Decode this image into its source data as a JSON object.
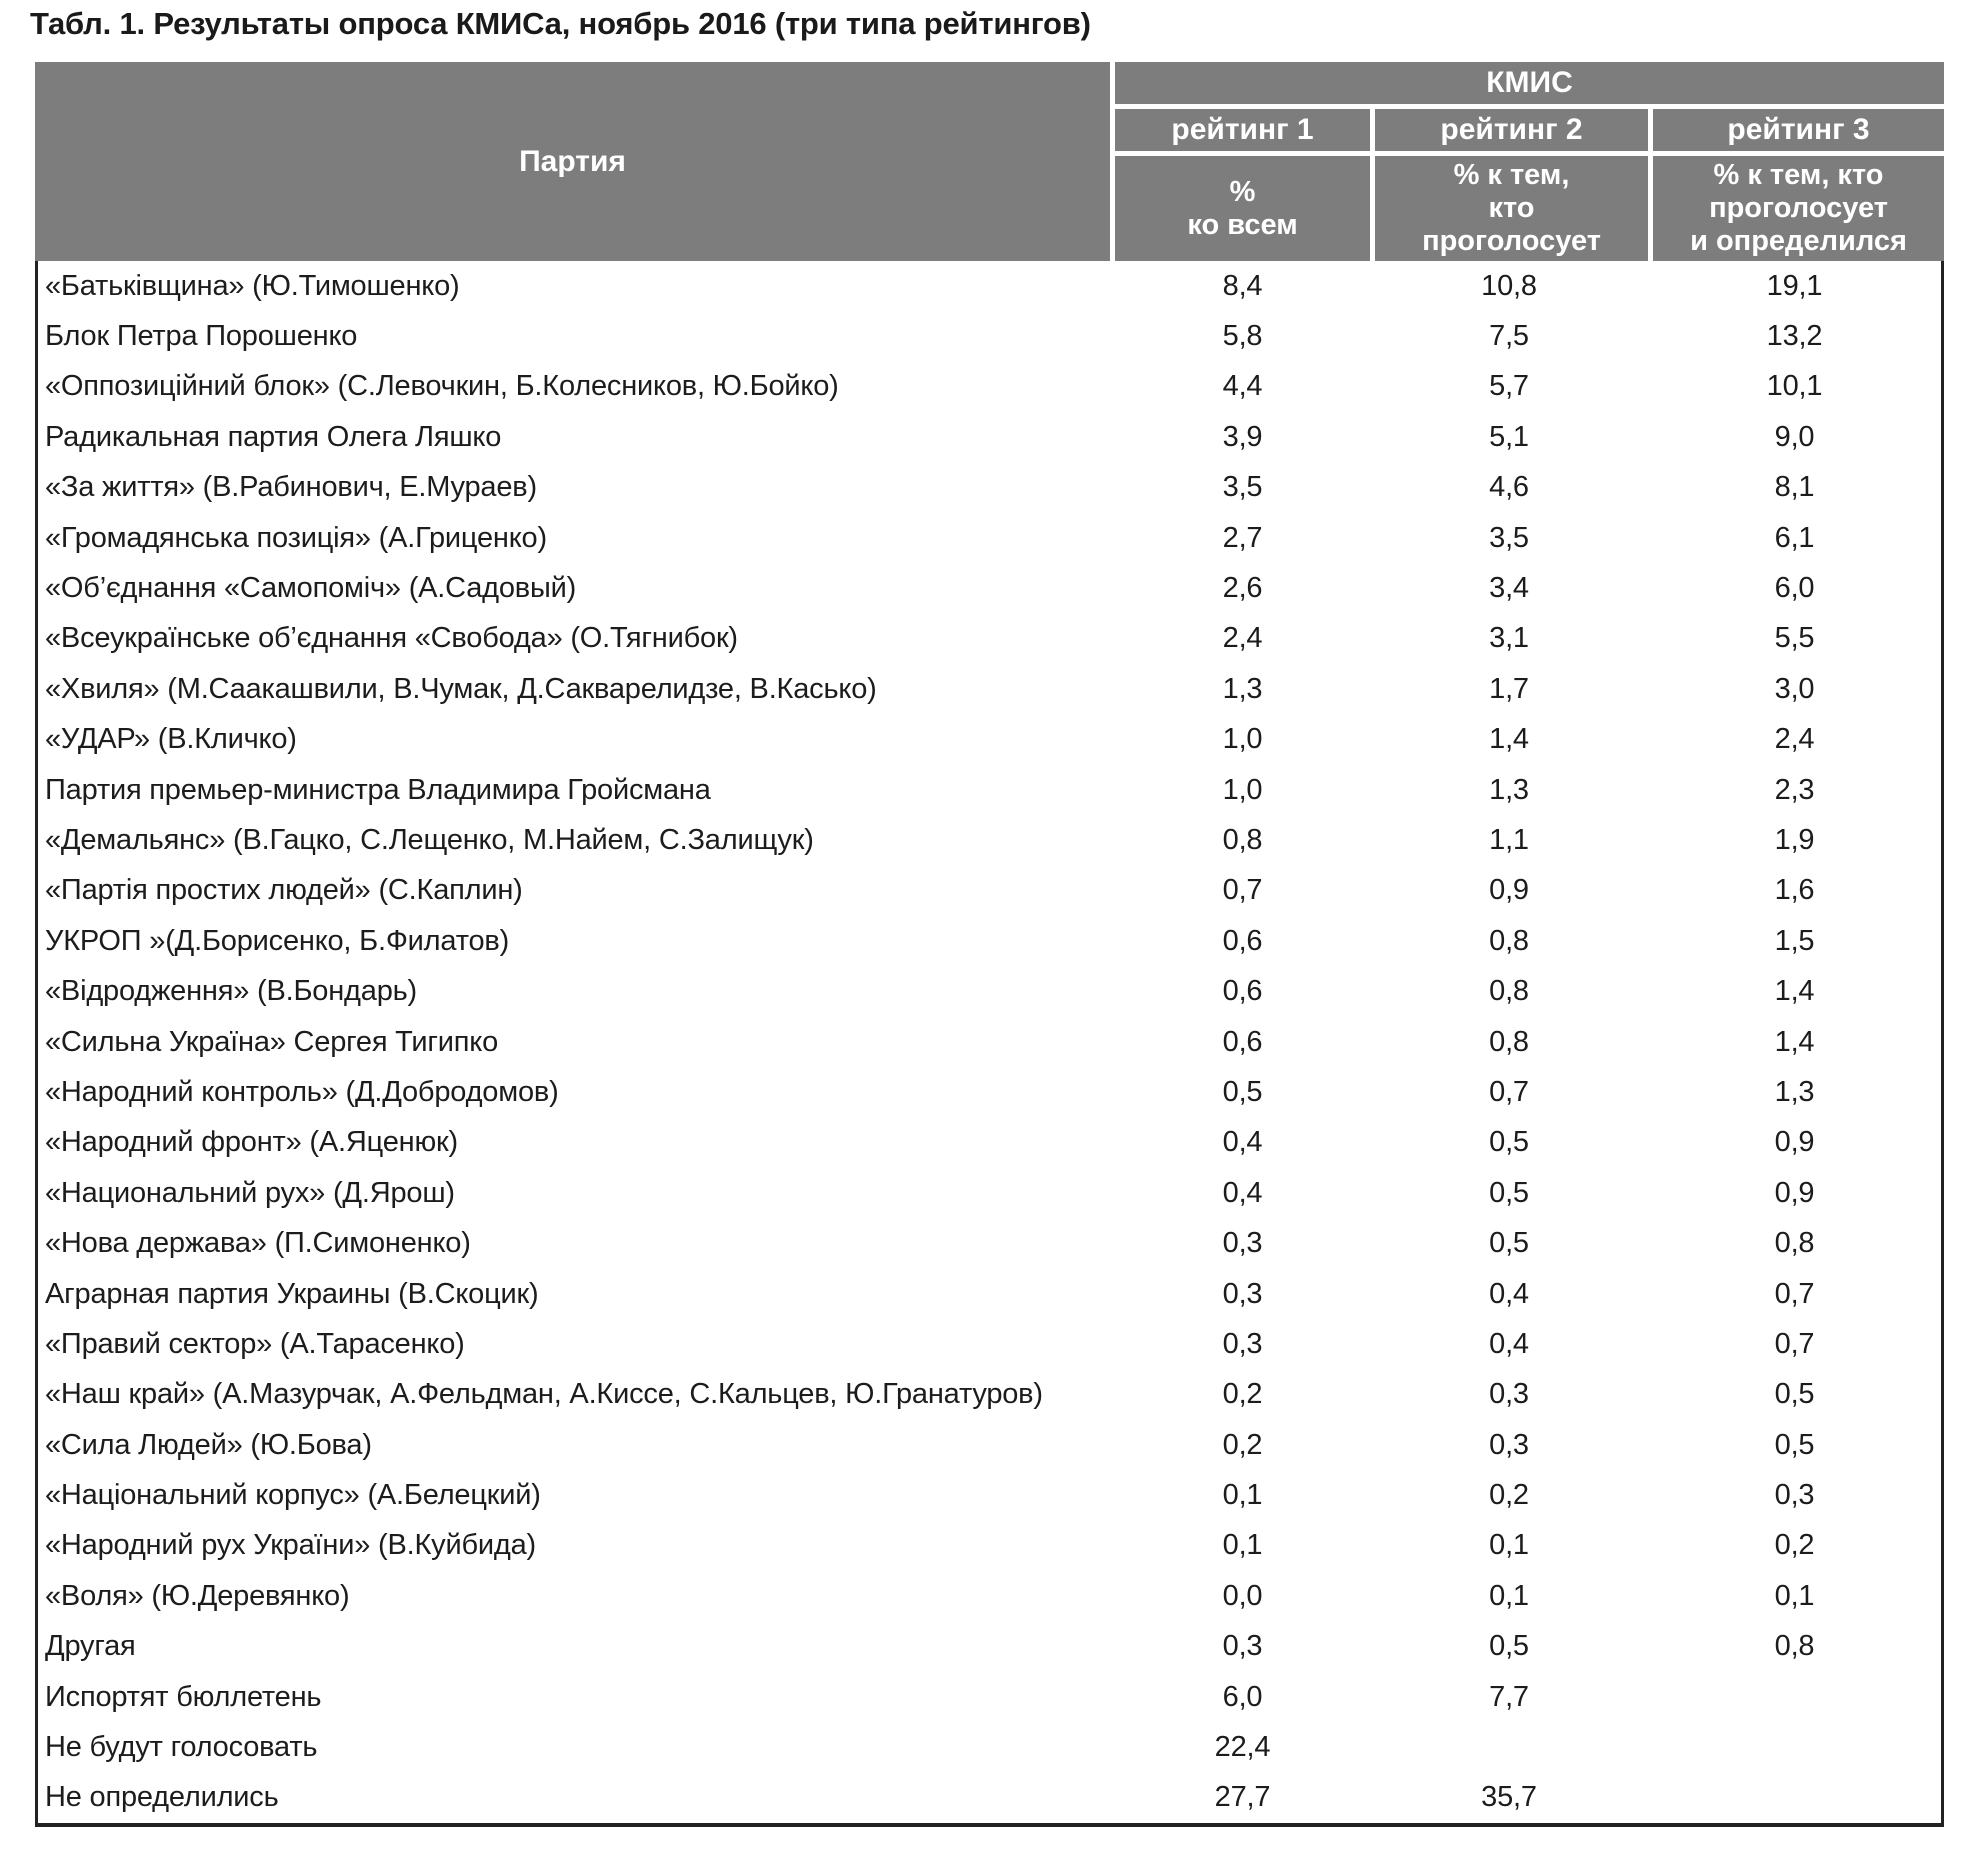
{
  "title": "Табл. 1. Результаты опроса КМИСа, ноябрь 2016 (три типа рейтингов)",
  "colors": {
    "header_bg": "#7d7d7d",
    "header_text": "#ffffff",
    "body_text": "#1c1c1c",
    "border": "#222222"
  },
  "table": {
    "party_col_header": "Партия",
    "org_group_header": "КМИС",
    "rating_headers": [
      "рейтинг 1",
      "рейтинг 2",
      "рейтинг 3"
    ],
    "rating_subheaders": [
      "%\nко всем",
      "% к тем,\nкто\nпроголосует",
      "% к тем, кто\nпроголосует\nи определился"
    ],
    "rows": [
      {
        "party": "«Батьківщина» (Ю.Тимошенко)",
        "r1": "8,4",
        "r2": "10,8",
        "r3": "19,1"
      },
      {
        "party": "Блок Петра Порошенко",
        "r1": "5,8",
        "r2": "7,5",
        "r3": "13,2"
      },
      {
        "party": "«Оппозиційний блок» (С.Левочкин, Б.Колесников, Ю.Бойко)",
        "r1": "4,4",
        "r2": "5,7",
        "r3": "10,1"
      },
      {
        "party": "Радикальная партия Олега Ляшко",
        "r1": "3,9",
        "r2": "5,1",
        "r3": "9,0"
      },
      {
        "party": "«За життя» (В.Рабинович, Е.Мураев)",
        "r1": "3,5",
        "r2": "4,6",
        "r3": "8,1"
      },
      {
        "party": "«Громадянська позиція» (А.Гриценко)",
        "r1": "2,7",
        "r2": "3,5",
        "r3": "6,1"
      },
      {
        "party": "«Об’єднання «Самопоміч» (А.Садовый)",
        "r1": "2,6",
        "r2": "3,4",
        "r3": "6,0"
      },
      {
        "party": "«Всеукраїнське об’єднання «Свобода» (О.Тягнибок)",
        "r1": "2,4",
        "r2": "3,1",
        "r3": "5,5"
      },
      {
        "party": "«Хвиля» (М.Саакашвили, В.Чумак, Д.Сакварелидзе, В.Касько)",
        "r1": "1,3",
        "r2": "1,7",
        "r3": "3,0"
      },
      {
        "party": "«УДАР» (В.Кличко)",
        "r1": "1,0",
        "r2": "1,4",
        "r3": "2,4"
      },
      {
        "party": "Партия премьер-министра Владимира Гройсмана",
        "r1": "1,0",
        "r2": "1,3",
        "r3": "2,3"
      },
      {
        "party": "«Демальянс» (В.Гацко, С.Лещенко, М.Найем, С.Залищук)",
        "r1": "0,8",
        "r2": "1,1",
        "r3": "1,9"
      },
      {
        "party": "«Партія простих людей» (С.Каплин)",
        "r1": "0,7",
        "r2": "0,9",
        "r3": "1,6"
      },
      {
        "party": "УКРОП »(Д.Борисенко, Б.Филатов)",
        "r1": "0,6",
        "r2": "0,8",
        "r3": "1,5"
      },
      {
        "party": "«Відродження» (В.Бондарь)",
        "r1": "0,6",
        "r2": "0,8",
        "r3": "1,4"
      },
      {
        "party": "«Сильна Україна» Сергея Тигипко",
        "r1": "0,6",
        "r2": "0,8",
        "r3": "1,4"
      },
      {
        "party": "«Народний контроль» (Д.Добродомов)",
        "r1": "0,5",
        "r2": "0,7",
        "r3": "1,3"
      },
      {
        "party": "«Народний фронт» (А.Яценюк)",
        "r1": "0,4",
        "r2": "0,5",
        "r3": "0,9"
      },
      {
        "party": "«Национальний рух» (Д.Ярош)",
        "r1": "0,4",
        "r2": "0,5",
        "r3": "0,9"
      },
      {
        "party": "«Нова держава» (П.Симоненко)",
        "r1": "0,3",
        "r2": "0,5",
        "r3": "0,8"
      },
      {
        "party": "Аграрная партия Украины (В.Скоцик)",
        "r1": "0,3",
        "r2": "0,4",
        "r3": "0,7"
      },
      {
        "party": "«Правий сектор» (А.Тарасенко)",
        "r1": "0,3",
        "r2": "0,4",
        "r3": "0,7"
      },
      {
        "party": "«Наш край» (А.Мазурчак, А.Фельдман, А.Киссе, С.Кальцев, Ю.Гранатуров)",
        "r1": "0,2",
        "r2": "0,3",
        "r3": "0,5"
      },
      {
        "party": "«Сила Людей» (Ю.Бова)",
        "r1": "0,2",
        "r2": "0,3",
        "r3": "0,5"
      },
      {
        "party": "«Національний корпус» (А.Белецкий)",
        "r1": "0,1",
        "r2": "0,2",
        "r3": "0,3"
      },
      {
        "party": "«Народний рух України» (В.Куйбида)",
        "r1": "0,1",
        "r2": "0,1",
        "r3": "0,2"
      },
      {
        "party": "«Воля» (Ю.Деревянко)",
        "r1": "0,0",
        "r2": "0,1",
        "r3": "0,1"
      },
      {
        "party": "Другая",
        "r1": "0,3",
        "r2": "0,5",
        "r3": "0,8"
      },
      {
        "party": "Испортят бюллетень",
        "r1": "6,0",
        "r2": "7,7",
        "r3": ""
      },
      {
        "party": "Не будут голосовать",
        "r1": "22,4",
        "r2": "",
        "r3": ""
      },
      {
        "party": "Не определились",
        "r1": "27,7",
        "r2": "35,7",
        "r3": ""
      }
    ]
  }
}
